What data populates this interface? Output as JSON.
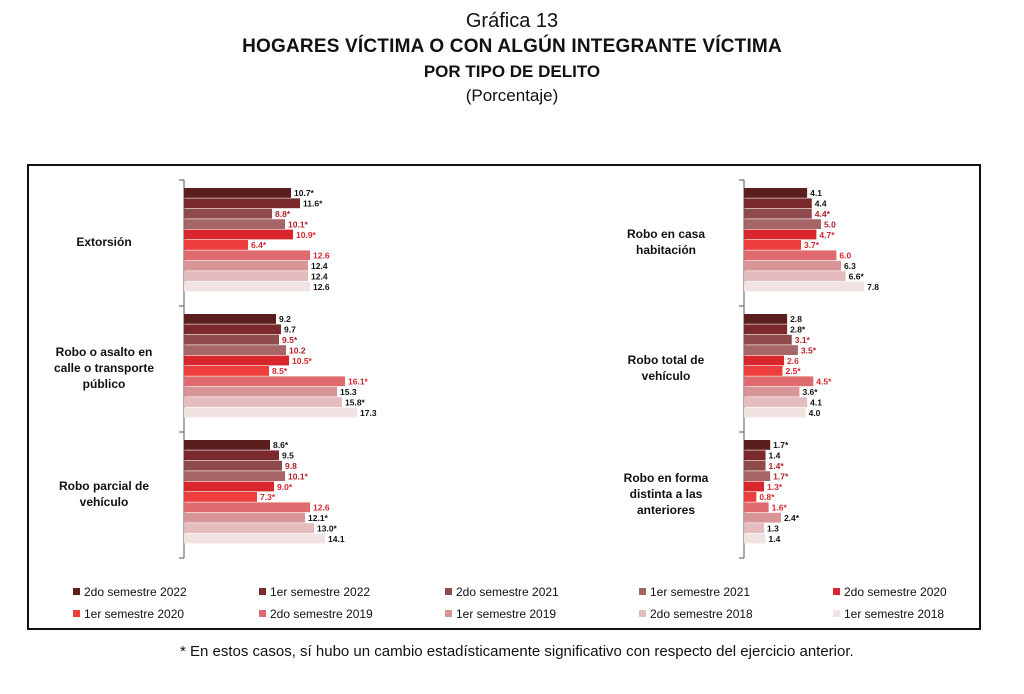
{
  "header": {
    "chart_number": "Gráfica 13",
    "title_line1": "HOGARES VÍCTIMA O CON ALGÚN INTEGRANTE VÍCTIMA",
    "title_line2": "POR TIPO DE DELITO",
    "unit": "(Porcentaje)"
  },
  "footnote": "*  En estos casos, sí hubo un cambio estadísticamente significativo con respecto del ejercicio anterior.",
  "chart_data": {
    "type": "bar",
    "orientation": "horizontal",
    "grid": false,
    "legend_position": "bottom",
    "series": [
      {
        "name": "2do semestre 2022",
        "color": "#5a1e1e"
      },
      {
        "name": "1er semestre 2022",
        "color": "#7a2a2c"
      },
      {
        "name": "2do semestre 2021",
        "color": "#8f4a4b"
      },
      {
        "name": "1er semestre 2021",
        "color": "#a66566"
      },
      {
        "name": "2do semestre 2020",
        "color": "#d7262c"
      },
      {
        "name": "1er semestre 2020",
        "color": "#ee3d3d"
      },
      {
        "name": "2do semestre 2019",
        "color": "#e06b6e"
      },
      {
        "name": "1er semestre 2019",
        "color": "#d79598"
      },
      {
        "name": "2do semestre 2018",
        "color": "#e4bcbd"
      },
      {
        "name": "1er semestre 2018",
        "color": "#f2e3e3"
      }
    ],
    "label_colors": [
      "#111111",
      "#111111",
      "#b02025",
      "#b02025",
      "#d7262c",
      "#d7262c",
      "#d7262c",
      "#111111",
      "#111111",
      "#111111"
    ],
    "panels": [
      {
        "categories": [
          {
            "name": "Extorsión",
            "values": [
              10.7,
              11.6,
              8.8,
              10.1,
              10.9,
              6.4,
              12.6,
              12.4,
              12.4,
              12.6
            ],
            "labels": [
              "10.7*",
              "11.6*",
              "8.8*",
              "10.1*",
              "10.9*",
              "6.4*",
              "12.6",
              "12.4",
              "12.4",
              "12.6"
            ]
          },
          {
            "name": "Robo o asalto en calle o transporte público",
            "values": [
              9.2,
              9.7,
              9.5,
              10.2,
              10.5,
              8.5,
              16.1,
              15.3,
              15.8,
              17.3
            ],
            "labels": [
              "9.2",
              "9.7",
              "9.5*",
              "10.2",
              "10.5*",
              "8.5*",
              "16.1*",
              "15.3",
              "15.8*",
              "17.3"
            ]
          },
          {
            "name": "Robo parcial de vehículo",
            "values": [
              8.6,
              9.5,
              9.8,
              10.1,
              9.0,
              7.3,
              12.6,
              12.1,
              13.0,
              14.1
            ],
            "labels": [
              "8.6*",
              "9.5",
              "9.8",
              "10.1*",
              "9.0*",
              "7.3*",
              "12.6",
              "12.1*",
              "13.0*",
              "14.1"
            ]
          }
        ]
      },
      {
        "categories": [
          {
            "name": "Robo en casa habitación",
            "values": [
              4.1,
              4.4,
              4.4,
              5.0,
              4.7,
              3.7,
              6.0,
              6.3,
              6.6,
              7.8
            ],
            "labels": [
              "4.1",
              "4.4",
              "4.4*",
              "5.0",
              "4.7*",
              "3.7*",
              "6.0",
              "6.3",
              "6.6*",
              "7.8"
            ]
          },
          {
            "name": "Robo total de vehículo",
            "values": [
              2.8,
              2.8,
              3.1,
              3.5,
              2.6,
              2.5,
              4.5,
              3.6,
              4.1,
              4.0
            ],
            "labels": [
              "2.8",
              "2.8*",
              "3.1*",
              "3.5*",
              "2.6",
              "2.5*",
              "4.5*",
              "3.6*",
              "4.1",
              "4.0"
            ]
          },
          {
            "name": "Robo en forma distinta a las anteriores",
            "values": [
              1.7,
              1.4,
              1.4,
              1.7,
              1.3,
              0.8,
              1.6,
              2.4,
              1.3,
              1.4
            ],
            "labels": [
              "1.7*",
              "1.4",
              "1.4*",
              "1.7*",
              "1.3*",
              "0.8*",
              "1.6*",
              "2.4*",
              "1.3",
              "1.4"
            ]
          }
        ]
      }
    ]
  }
}
